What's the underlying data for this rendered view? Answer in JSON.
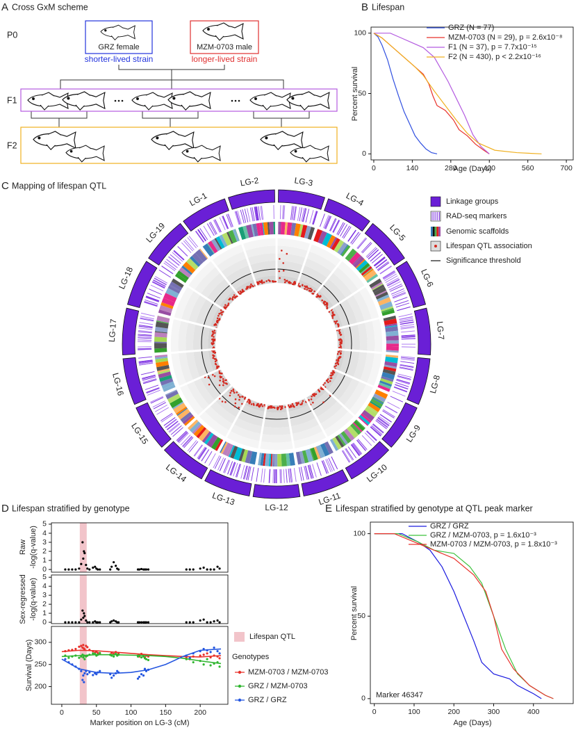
{
  "scheme": {
    "label": "A",
    "title": "Cross GxM scheme",
    "generations": [
      "P0",
      "F1",
      "F2"
    ],
    "female": "GRZ female",
    "male": "MZM-0703 male",
    "female_note": "shorter-lived strain",
    "male_note": "longer-lived strain"
  },
  "circos": {
    "label": "C",
    "title": "Mapping of lifespan QTL",
    "linkage_groups": [
      "LG-3",
      "LG-4",
      "LG-5",
      "LG-6",
      "LG-7",
      "LG-8",
      "LG-9",
      "LG-10",
      "LG-11",
      "LG-12",
      "LG-13",
      "LG-14",
      "LG-15",
      "LG-16",
      "LG-17",
      "LG-18",
      "LG-19",
      "LG-1",
      "LG-2"
    ],
    "legend": [
      "Linkage groups",
      "RAD-seq markers",
      "Genomic scaffolds",
      "Lifespan QTL association",
      "Significance threshold"
    ]
  },
  "chart_data": [
    {
      "type": "line",
      "label": "B",
      "title": "Lifespan",
      "xlabel": "Age (Days)",
      "ylabel": "Percent survival",
      "xlim": [
        -10,
        725
      ],
      "ylim": [
        -5,
        105
      ],
      "xticks": [
        0,
        140,
        280,
        420,
        560,
        700
      ],
      "yticks": [
        0,
        50,
        100
      ],
      "series": [
        {
          "name": "GRZ (N = 77)",
          "color": "#2f4fe0",
          "x": [
            0,
            15,
            30,
            50,
            70,
            90,
            110,
            130,
            150,
            170,
            190,
            210,
            230
          ],
          "values": [
            100,
            97,
            90,
            78,
            62,
            48,
            35,
            25,
            15,
            9,
            4,
            1,
            0
          ]
        },
        {
          "name": "MZM-0703 (N = 29), p = 2.6x10⁻⁸",
          "color": "#e8312a",
          "x": [
            0,
            30,
            60,
            100,
            130,
            160,
            180,
            200,
            215,
            230,
            260,
            290,
            310,
            340,
            370,
            400,
            420
          ],
          "values": [
            100,
            96,
            90,
            82,
            76,
            70,
            66,
            58,
            48,
            40,
            36,
            28,
            20,
            15,
            8,
            3,
            0
          ]
        },
        {
          "name": "F1 (N = 37), p = 7.7x10⁻¹⁵",
          "color": "#b45be0",
          "x": [
            0,
            60,
            100,
            140,
            180,
            220,
            240,
            270,
            300,
            330,
            360,
            390,
            420
          ],
          "values": [
            100,
            100,
            96,
            92,
            88,
            80,
            72,
            60,
            46,
            32,
            16,
            6,
            0
          ]
        },
        {
          "name": "F2 (N = 430), p < 2.2x10⁻¹⁶",
          "color": "#f0b020",
          "x": [
            0,
            30,
            60,
            90,
            120,
            150,
            180,
            220,
            260,
            300,
            340,
            380,
            440,
            520,
            610
          ],
          "values": [
            100,
            96,
            90,
            84,
            78,
            72,
            65,
            52,
            40,
            28,
            17,
            9,
            3,
            1,
            0
          ]
        }
      ]
    },
    {
      "type": "scatter",
      "label": "D",
      "title": "Lifespan stratified by genotype",
      "ylabel": [
        "Raw",
        "-log(q-value)"
      ],
      "xlim": [
        -15,
        240
      ],
      "ylim": [
        -0.3,
        5.15
      ],
      "yticks": [
        0,
        1,
        2,
        3,
        4,
        5
      ],
      "band": [
        26,
        36
      ],
      "band_color": "#f2c4ca",
      "color": "#000000",
      "x": [
        5,
        10,
        15,
        20,
        25,
        28,
        30,
        31,
        32,
        33,
        35,
        37,
        40,
        45,
        48,
        50,
        52,
        55,
        70,
        72,
        75,
        78,
        80,
        82,
        110,
        112,
        115,
        118,
        120,
        122,
        125,
        180,
        185,
        190,
        200,
        205,
        210,
        215,
        220,
        225,
        228
      ],
      "values": [
        0,
        0,
        0,
        0,
        0.1,
        0.6,
        3,
        1.2,
        2,
        1.8,
        0.5,
        0.1,
        0,
        0.2,
        0.3,
        0.1,
        0,
        0,
        0,
        0.3,
        0.8,
        0.4,
        0.1,
        0,
        0,
        0,
        0.05,
        0,
        0,
        0,
        0,
        0,
        0,
        0,
        0.1,
        0.2,
        0,
        0,
        0,
        0.3,
        0.1
      ]
    },
    {
      "type": "scatter",
      "ylabel": [
        "Sex-regressed",
        "-log(q-value)"
      ],
      "xlim": [
        -15,
        240
      ],
      "ylim": [
        -0.15,
        5.25
      ],
      "yticks": [
        0,
        1,
        2,
        3,
        4,
        5
      ],
      "band": [
        26,
        36
      ],
      "band_color": "#f2c4ca",
      "color": "#000000",
      "x": [
        5,
        10,
        15,
        20,
        25,
        28,
        30,
        31,
        32,
        33,
        35,
        37,
        40,
        45,
        48,
        50,
        52,
        55,
        70,
        72,
        75,
        78,
        80,
        82,
        110,
        112,
        115,
        118,
        120,
        122,
        125,
        180,
        185,
        190,
        200,
        205,
        210,
        215,
        220,
        225,
        228
      ],
      "values": [
        0,
        0,
        0,
        0,
        0,
        0.3,
        1.3,
        0.5,
        1,
        0.7,
        0.2,
        0,
        0,
        0,
        0.1,
        0,
        0,
        0,
        0,
        0.1,
        0.2,
        0.1,
        0,
        0,
        0,
        0,
        0,
        0,
        0,
        0,
        0,
        0,
        0,
        0,
        0.2,
        0.3,
        0,
        0,
        0.1,
        0.2,
        0
      ]
    },
    {
      "type": "scatter",
      "ylabel": "Survival (Days)",
      "xlabel": "Marker position on LG-3 (cM)",
      "xlim": [
        -15,
        240
      ],
      "ylim": [
        160,
        336
      ],
      "xticks": [
        0,
        50,
        100,
        150,
        200
      ],
      "yticks": [
        200,
        250,
        300
      ],
      "band": [
        26,
        36
      ],
      "band_color": "#f2c4ca",
      "band_name": "Lifespan QTL",
      "legend_title": "Genotypes",
      "series": [
        {
          "name": "MZM-0703 / MZM-0703",
          "color": "#e8312a",
          "x": [
            5,
            10,
            15,
            20,
            25,
            28,
            30,
            31,
            32,
            33,
            35,
            37,
            40,
            45,
            48,
            50,
            52,
            55,
            70,
            72,
            75,
            78,
            80,
            82,
            110,
            112,
            115,
            118,
            120,
            122,
            125,
            180,
            185,
            190,
            200,
            205,
            210,
            215,
            220,
            225,
            228
          ],
          "values": [
            280,
            282,
            283,
            285,
            290,
            292,
            288,
            294,
            286,
            284,
            292,
            289,
            283,
            280,
            277,
            279,
            276,
            274,
            272,
            276,
            274,
            278,
            272,
            275,
            270,
            268,
            274,
            271,
            266,
            270,
            268,
            265,
            262,
            268,
            270,
            272,
            275,
            266,
            270,
            268,
            264
          ],
          "fit": {
            "x": [
              0,
              25,
              50,
              75,
              100,
              125,
              150,
              175,
              200,
              230
            ],
            "values": [
              279,
              282,
              281,
              278,
              275,
              272,
              270,
              268,
              267,
              270
            ]
          }
        },
        {
          "name": "GRZ / MZM-0703",
          "color": "#2fb52f",
          "x": [
            5,
            10,
            15,
            20,
            25,
            28,
            30,
            31,
            32,
            33,
            35,
            37,
            40,
            45,
            48,
            50,
            52,
            55,
            70,
            72,
            75,
            78,
            80,
            82,
            110,
            112,
            115,
            118,
            120,
            122,
            125,
            180,
            185,
            190,
            200,
            205,
            210,
            215,
            220,
            225,
            228
          ],
          "values": [
            270,
            265,
            268,
            270,
            265,
            268,
            272,
            266,
            270,
            262,
            268,
            270,
            272,
            275,
            274,
            270,
            272,
            276,
            272,
            270,
            268,
            274,
            270,
            272,
            268,
            270,
            266,
            268,
            264,
            262,
            260,
            262,
            264,
            255,
            258,
            250,
            262,
            248,
            252,
            255,
            245
          ],
          "fit": {
            "x": [
              0,
              25,
              50,
              75,
              100,
              125,
              150,
              175,
              200,
              230
            ],
            "values": [
              268,
              270,
              272,
              272,
              271,
              270,
              268,
              264,
              258,
              252
            ]
          }
        },
        {
          "name": "GRZ / GRZ",
          "color": "#2456e0",
          "x": [
            5,
            10,
            15,
            20,
            25,
            28,
            30,
            31,
            32,
            33,
            35,
            37,
            40,
            45,
            48,
            50,
            52,
            55,
            70,
            72,
            75,
            78,
            80,
            82,
            110,
            112,
            115,
            118,
            120,
            122,
            125,
            180,
            185,
            190,
            200,
            205,
            210,
            215,
            220,
            225,
            228
          ],
          "values": [
            262,
            255,
            250,
            245,
            240,
            235,
            215,
            225,
            210,
            230,
            235,
            228,
            232,
            226,
            230,
            228,
            232,
            235,
            228,
            220,
            225,
            230,
            235,
            232,
            218,
            222,
            228,
            225,
            240,
            235,
            238,
            270,
            265,
            275,
            280,
            285,
            282,
            278,
            288,
            280,
            275
          ],
          "fit": {
            "x": [
              0,
              25,
              50,
              75,
              100,
              125,
              150,
              175,
              200,
              230
            ],
            "values": [
              262,
              240,
              232,
              230,
              232,
              238,
              250,
              268,
              282,
              285
            ]
          }
        }
      ]
    },
    {
      "type": "line",
      "label": "E",
      "title": "Lifespan stratified by genotype at QTL peak marker",
      "xlabel": "Age (Days)",
      "ylabel": "Percent survival",
      "annotation": "Marker 46347",
      "xlim": [
        -10,
        500
      ],
      "ylim": [
        -3,
        107
      ],
      "xticks": [
        0,
        100,
        200,
        300,
        400
      ],
      "yticks": [
        0,
        50,
        100
      ],
      "series": [
        {
          "name": "GRZ / GRZ",
          "color": "#1a1adf",
          "x": [
            0,
            70,
            110,
            140,
            170,
            200,
            225,
            250,
            270,
            300,
            340,
            360,
            400,
            420
          ],
          "values": [
            100,
            100,
            95,
            90,
            80,
            65,
            50,
            35,
            22,
            15,
            12,
            8,
            3,
            0
          ]
        },
        {
          "name": "GRZ / MZM-0703, p = 1.6x10⁻³",
          "color": "#3cc23c",
          "x": [
            0,
            60,
            110,
            150,
            200,
            240,
            270,
            300,
            330,
            360,
            390,
            430,
            450
          ],
          "values": [
            100,
            100,
            95,
            90,
            88,
            80,
            70,
            50,
            30,
            15,
            8,
            2,
            0
          ]
        },
        {
          "name": "MZM-0703 / MZM-0703, p = 1.8x10⁻³",
          "color": "#e8312a",
          "x": [
            0,
            50,
            100,
            150,
            200,
            250,
            280,
            300,
            320,
            350,
            390,
            430,
            450
          ],
          "values": [
            100,
            100,
            95,
            90,
            85,
            75,
            65,
            50,
            30,
            18,
            8,
            2,
            0
          ]
        }
      ]
    }
  ]
}
